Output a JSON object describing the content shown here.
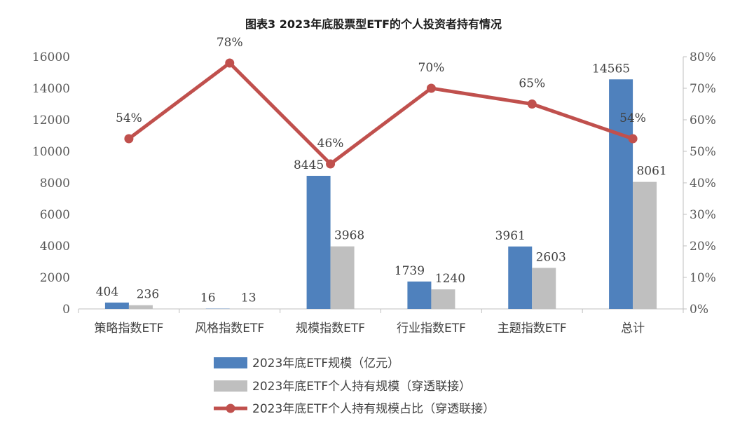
{
  "chart_data": {
    "type": "bar+line",
    "title": "图表3  2023年底股票型ETF的个人投资者持有情况",
    "categories": [
      "策略指数ETF",
      "风格指数ETF",
      "规模指数ETF",
      "行业指数ETF",
      "主题指数ETF",
      "总计"
    ],
    "series": [
      {
        "name": "2023年底ETF规模（亿元）",
        "kind": "bar",
        "axis": "left",
        "color": "#4f81bd",
        "values": [
          404,
          16,
          8445,
          1739,
          3961,
          14565
        ],
        "labels": [
          "404",
          "16",
          "8445",
          "1739",
          "3961",
          "14565"
        ]
      },
      {
        "name": "2023年底ETF个人持有规模（穿透联接）",
        "kind": "bar",
        "axis": "left",
        "color": "#bfbfbf",
        "values": [
          236,
          13,
          3968,
          1240,
          2603,
          8061
        ],
        "labels": [
          "236",
          "13",
          "3968",
          "1240",
          "2603",
          "8061"
        ]
      },
      {
        "name": "2023年底ETF个人持有规模占比（穿透联接）",
        "kind": "line",
        "axis": "right",
        "color": "#c0504d",
        "values": [
          54,
          78,
          46,
          70,
          65,
          54
        ],
        "labels": [
          "54%",
          "78%",
          "46%",
          "70%",
          "65%",
          "54%"
        ]
      }
    ],
    "y_left": {
      "min": 0,
      "max": 16000,
      "step": 2000,
      "ticks": [
        "0",
        "2000",
        "4000",
        "6000",
        "8000",
        "10000",
        "12000",
        "14000",
        "16000"
      ]
    },
    "y_right": {
      "min": 0,
      "max": 80,
      "step": 10,
      "ticks": [
        "0%",
        "10%",
        "20%",
        "30%",
        "40%",
        "50%",
        "60%",
        "70%",
        "80%"
      ]
    },
    "grid": false,
    "legend_position": "bottom"
  }
}
